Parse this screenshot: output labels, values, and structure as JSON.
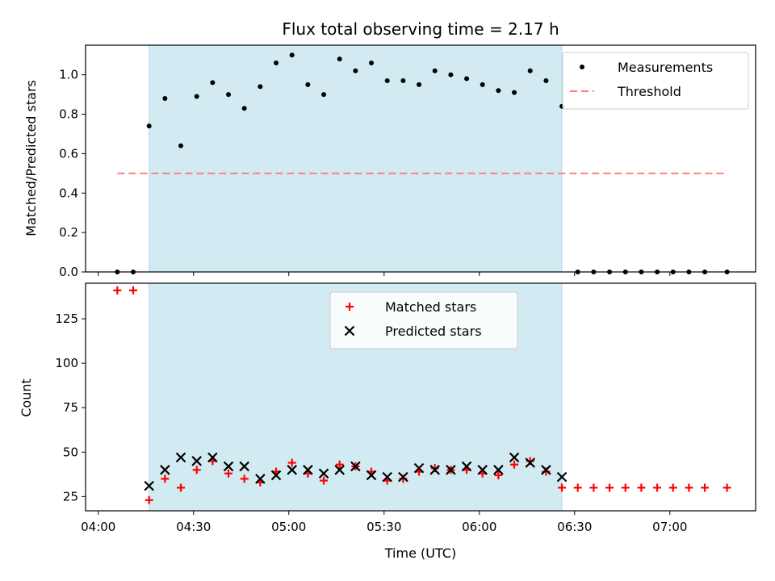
{
  "chart_data": [
    {
      "type": "scatter",
      "title": "Flux total observing time = 2.17 h",
      "xlabel": "",
      "ylabel": "Matched/Predicted stars",
      "ylim": [
        0,
        1.15
      ],
      "yticks": [
        "0.0",
        "0.2",
        "0.4",
        "0.6",
        "0.8",
        "1.0"
      ],
      "yticks_values": [
        0,
        0.2,
        0.4,
        0.6,
        0.8,
        1.0
      ],
      "xlim": [
        "03:56",
        "07:27"
      ],
      "xticks": [
        "04:00",
        "04:30",
        "05:00",
        "05:30",
        "06:00",
        "06:30",
        "07:00"
      ],
      "highlight_span": [
        "04:16",
        "06:26"
      ],
      "highlight_color": "#add8e6",
      "legend": {
        "position": "top-right",
        "entries": [
          "Measurements",
          "Threshold"
        ]
      },
      "series": [
        {
          "name": "Measurements",
          "marker": "dot",
          "color": "#000000",
          "x": [
            "04:06",
            "04:11",
            "04:16",
            "04:21",
            "04:26",
            "04:31",
            "04:36",
            "04:41",
            "04:46",
            "04:51",
            "04:56",
            "05:01",
            "05:06",
            "05:11",
            "05:16",
            "05:21",
            "05:26",
            "05:31",
            "05:36",
            "05:41",
            "05:46",
            "05:51",
            "05:56",
            "06:01",
            "06:06",
            "06:11",
            "06:16",
            "06:21",
            "06:26",
            "06:31",
            "06:36",
            "06:41",
            "06:46",
            "06:51",
            "06:56",
            "07:01",
            "07:06",
            "07:11",
            "07:18"
          ],
          "y": [
            0,
            0,
            0.74,
            0.88,
            0.64,
            0.89,
            0.96,
            0.9,
            0.83,
            0.94,
            1.06,
            1.1,
            0.95,
            0.9,
            1.08,
            1.02,
            1.06,
            0.97,
            0.97,
            0.95,
            1.02,
            1.0,
            0.98,
            0.95,
            0.92,
            0.91,
            1.02,
            0.97,
            0.84,
            0,
            0,
            0,
            0,
            0,
            0,
            0,
            0,
            0,
            0
          ]
        },
        {
          "name": "Threshold",
          "marker": "dashed-line",
          "color": "#ff7f7f",
          "x": [
            "04:06",
            "07:18"
          ],
          "y": [
            0.5,
            0.5
          ]
        }
      ]
    },
    {
      "type": "scatter",
      "title": "",
      "xlabel": "Time (UTC)",
      "ylabel": "Count",
      "ylim": [
        17,
        145
      ],
      "yticks": [
        "25",
        "50",
        "75",
        "100",
        "125"
      ],
      "yticks_values": [
        25,
        50,
        75,
        100,
        125
      ],
      "xlim": [
        "03:56",
        "07:27"
      ],
      "xticks": [
        "04:00",
        "04:30",
        "05:00",
        "05:30",
        "06:00",
        "06:30",
        "07:00"
      ],
      "highlight_span": [
        "04:16",
        "06:26"
      ],
      "highlight_color": "#add8e6",
      "legend": {
        "position": "top-center",
        "entries": [
          "Matched stars",
          "Predicted stars"
        ]
      },
      "series": [
        {
          "name": "Matched stars",
          "marker": "plus",
          "color": "#ff0000",
          "x": [
            "04:06",
            "04:11",
            "04:16",
            "04:21",
            "04:26",
            "04:31",
            "04:36",
            "04:41",
            "04:46",
            "04:51",
            "04:56",
            "05:01",
            "05:06",
            "05:11",
            "05:16",
            "05:21",
            "05:26",
            "05:31",
            "05:36",
            "05:41",
            "05:46",
            "05:51",
            "05:56",
            "06:01",
            "06:06",
            "06:11",
            "06:16",
            "06:21",
            "06:26",
            "06:31",
            "06:36",
            "06:41",
            "06:46",
            "06:51",
            "06:56",
            "07:01",
            "07:06",
            "07:11",
            "07:18"
          ],
          "y": [
            141,
            141,
            23,
            35,
            30,
            40,
            45,
            38,
            35,
            33,
            39,
            44,
            38,
            34,
            43,
            42,
            39,
            34,
            35,
            39,
            41,
            40,
            40,
            38,
            37,
            43,
            45,
            39,
            30,
            30,
            30,
            30,
            30,
            30,
            30,
            30,
            30,
            30,
            30
          ]
        },
        {
          "name": "Predicted stars",
          "marker": "x",
          "color": "#000000",
          "x": [
            "04:16",
            "04:21",
            "04:26",
            "04:31",
            "04:36",
            "04:41",
            "04:46",
            "04:51",
            "04:56",
            "05:01",
            "05:06",
            "05:11",
            "05:16",
            "05:21",
            "05:26",
            "05:31",
            "05:36",
            "05:41",
            "05:46",
            "05:51",
            "05:56",
            "06:01",
            "06:06",
            "06:11",
            "06:16",
            "06:21",
            "06:26"
          ],
          "y": [
            31,
            40,
            47,
            45,
            47,
            42,
            42,
            35,
            37,
            40,
            40,
            38,
            40,
            42,
            37,
            36,
            36,
            41,
            40,
            40,
            42,
            40,
            40,
            47,
            44,
            40,
            36
          ]
        }
      ]
    }
  ]
}
